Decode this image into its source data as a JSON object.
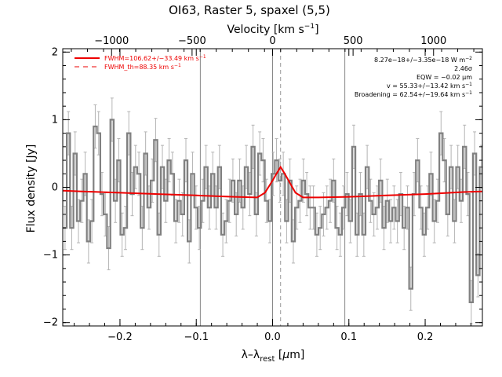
{
  "chart_data": {
    "type": "line",
    "title": "OI63, Raster 5, spaxel (5,5)",
    "xlabel": "λ–λ_rest [μm]",
    "xlabel_main": "λ–λ",
    "xlabel_sub": "rest",
    "xlabel_unit_open": " [",
    "xlabel_unit_mu": "μ",
    "xlabel_unit_close": "m]",
    "ylabel": "Flux density [Jy]",
    "x2label": "Velocity [km s⁻¹]",
    "x2label_main": "Velocity [km s",
    "x2label_exp": "−1",
    "x2label_close": "]",
    "xlim": [
      -0.275,
      0.275
    ],
    "ylim": [
      -2.05,
      2.05
    ],
    "x_ticks": [
      -0.2,
      -0.1,
      0.0,
      0.1,
      0.2
    ],
    "x_tick_labels": [
      "−0.2",
      "−0.1",
      "0.0",
      "0.1",
      "0.2"
    ],
    "y_ticks": [
      -2,
      -1,
      0,
      1,
      2
    ],
    "y_tick_labels": [
      "−2",
      "−1",
      "0",
      "1",
      "2"
    ],
    "x2_ticks_velocity": [
      -1000,
      -500,
      0,
      500,
      1000
    ],
    "x2_tick_labels": [
      "−1000",
      "−500",
      "0",
      "500",
      "1000"
    ],
    "x2_per_unit": 0.000211,
    "vertical_lines": [
      -0.0947,
      0.0,
      0.0947
    ],
    "dashed_line_x": 0.0105,
    "legend": [
      {
        "label": "FWHM=106.62+/−33.49 km s⁻¹",
        "main": "FWHM=106.62+/−33.49 km s",
        "exp": "−1",
        "style": "solid",
        "color": "#ee0000"
      },
      {
        "label": "FWHM_th=88.35 km s⁻¹",
        "main": "FWHM_th=88.35 km s",
        "exp": "−1",
        "style": "dashed",
        "color": "#ee0000"
      }
    ],
    "fit_annotations": [
      {
        "main": "8.27e−18+/−3.35e−18 W m",
        "exp": "−2"
      },
      {
        "main": "2.46σ",
        "exp": ""
      },
      {
        "main": "EQW = −0.02 μm",
        "exp": ""
      },
      {
        "main": "v = 55.33+/−13.42 km s",
        "exp": "−1"
      },
      {
        "main": "Broadening = 62.54+/−19.64 km s",
        "exp": "−1"
      }
    ],
    "series": [
      {
        "type": "step-errorbar",
        "color": "#808080",
        "x": [
          -0.272,
          -0.2676,
          -0.2632,
          -0.2588,
          -0.2544,
          -0.25,
          -0.2456,
          -0.2412,
          -0.2368,
          -0.2324,
          -0.228,
          -0.2236,
          -0.2192,
          -0.2148,
          -0.2104,
          -0.206,
          -0.2016,
          -0.1972,
          -0.1928,
          -0.1884,
          -0.184,
          -0.1796,
          -0.1752,
          -0.1708,
          -0.1664,
          -0.162,
          -0.1576,
          -0.1532,
          -0.1488,
          -0.1444,
          -0.14,
          -0.1356,
          -0.1312,
          -0.1268,
          -0.1224,
          -0.118,
          -0.1136,
          -0.1092,
          -0.1048,
          -0.1004,
          -0.096,
          -0.0916,
          -0.0872,
          -0.0828,
          -0.0784,
          -0.074,
          -0.0696,
          -0.0652,
          -0.0608,
          -0.0564,
          -0.052,
          -0.0476,
          -0.0432,
          -0.0388,
          -0.0344,
          -0.03,
          -0.0256,
          -0.0212,
          -0.0168,
          -0.0124,
          -0.008,
          -0.0036,
          0.0008,
          0.0052,
          0.0096,
          0.014,
          0.0184,
          0.0228,
          0.0272,
          0.0316,
          0.036,
          0.0404,
          0.0448,
          0.0492,
          0.0536,
          0.058,
          0.0624,
          0.0668,
          0.0712,
          0.0756,
          0.08,
          0.0844,
          0.0888,
          0.0932,
          0.0976,
          0.102,
          0.1064,
          0.1108,
          0.1152,
          0.1196,
          0.124,
          0.1284,
          0.1328,
          0.1372,
          0.1416,
          0.146,
          0.1504,
          0.1548,
          0.1592,
          0.1636,
          0.168,
          0.1724,
          0.1768,
          0.1812,
          0.1856,
          0.19,
          0.1944,
          0.1988,
          0.2032,
          0.2076,
          0.212,
          0.2164,
          0.2208,
          0.2252,
          0.2296,
          0.234,
          0.2384,
          0.2428,
          0.2472,
          0.2516,
          0.256,
          0.2604,
          0.2648,
          0.2692,
          0.2736
        ],
        "y": [
          -0.6,
          0.8,
          -0.6,
          0.5,
          -0.5,
          -0.2,
          0.2,
          -0.8,
          -0.5,
          0.9,
          0.8,
          -0.1,
          -0.4,
          -0.9,
          1.0,
          -0.2,
          0.4,
          -0.7,
          -0.6,
          0.8,
          -0.1,
          0.3,
          0.2,
          -0.6,
          0.5,
          -0.3,
          0.1,
          0.7,
          -0.7,
          0.3,
          -0.2,
          0.4,
          0.2,
          -0.5,
          -0.2,
          -0.4,
          0.4,
          -0.8,
          0.2,
          -0.3,
          -0.6,
          -0.2,
          0.3,
          -0.3,
          0.2,
          -0.3,
          0.3,
          -0.7,
          -0.5,
          -0.2,
          0.1,
          -0.4,
          0.1,
          -0.3,
          0.3,
          -0.1,
          0.6,
          -0.4,
          0.5,
          0.4,
          -0.2,
          -0.5,
          0.2,
          0.4,
          0.1,
          0.2,
          -0.5,
          0.1,
          -0.8,
          -0.3,
          -0.2,
          0.1,
          -0.1,
          -0.3,
          -0.3,
          -0.7,
          -0.6,
          -0.4,
          -0.3,
          -0.2,
          0.1,
          -0.6,
          -0.7,
          -0.3,
          -0.1,
          -0.5,
          0.6,
          -0.7,
          -0.1,
          -0.7,
          0.3,
          -0.2,
          -0.4,
          -0.3,
          0.1,
          -0.6,
          -0.2,
          -0.5,
          -0.3,
          -0.5,
          -0.1,
          -0.6,
          -0.3,
          -1.5,
          -0.1,
          0.4,
          -0.3,
          -0.7,
          -0.3,
          0.2,
          -0.5,
          -0.2,
          0.8,
          0.4,
          -0.4,
          0.3,
          -0.5,
          0.3,
          -0.2,
          0.6,
          -0.1,
          -1.7,
          0.5,
          -1.3,
          0.3
        ],
        "err": 0.32
      },
      {
        "type": "line",
        "name": "FWHM=106.62+/−33.49 km s⁻¹",
        "color": "#ee0000",
        "x": [
          -0.275,
          -0.25,
          -0.2,
          -0.15,
          -0.1,
          -0.05,
          -0.02,
          -0.01,
          0.0,
          0.005,
          0.0105,
          0.016,
          0.021,
          0.03,
          0.04,
          0.06,
          0.1,
          0.15,
          0.2,
          0.25,
          0.275
        ],
        "y": [
          -0.05,
          -0.06,
          -0.08,
          -0.1,
          -0.12,
          -0.14,
          -0.15,
          -0.08,
          0.1,
          0.2,
          0.3,
          0.2,
          0.1,
          -0.08,
          -0.15,
          -0.15,
          -0.14,
          -0.12,
          -0.1,
          -0.07,
          -0.06
        ]
      }
    ],
    "grid": false
  }
}
